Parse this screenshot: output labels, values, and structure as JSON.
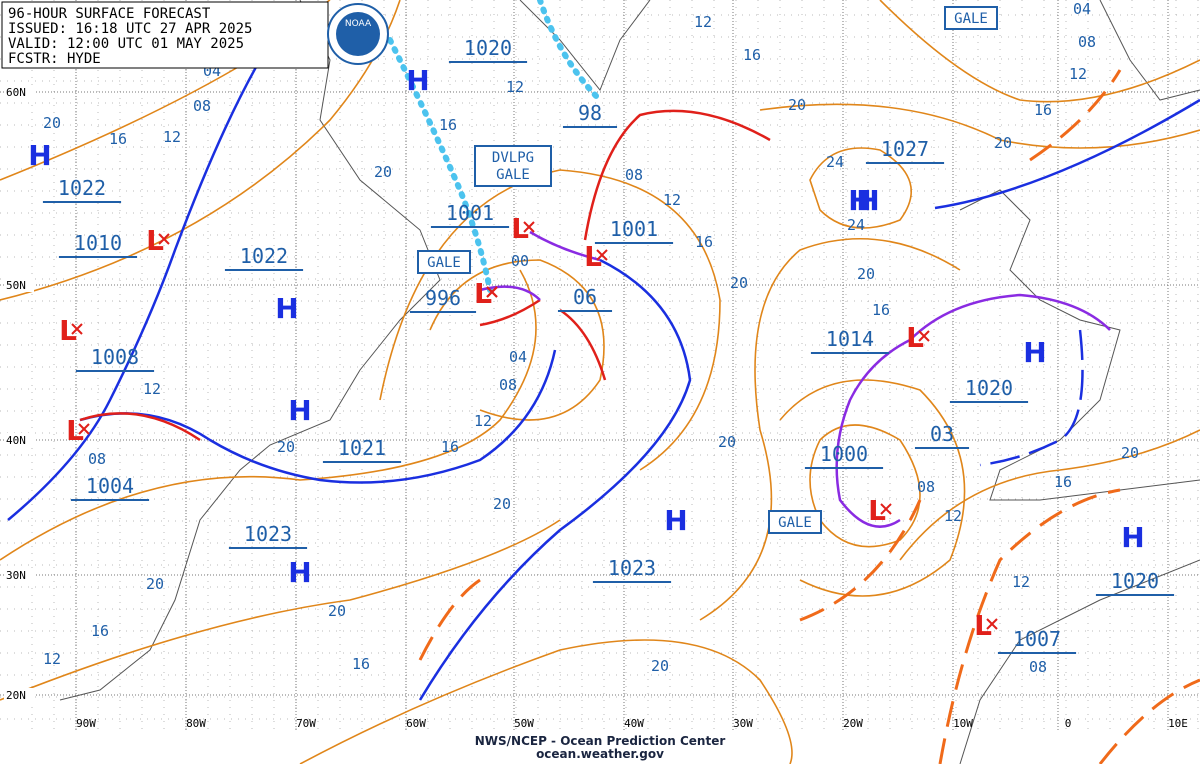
{
  "header": {
    "lines": [
      "96-HOUR SURFACE FORECAST",
      "ISSUED: 16:18 UTC 27 APR 2025",
      "VALID: 12:00 UTC 01 MAY 2025",
      "FCSTR: HYDE"
    ],
    "logo": "NOAA"
  },
  "lat_labels": [
    "60N",
    "50N",
    "40N",
    "30N",
    "20N"
  ],
  "lon_labels": [
    "90W",
    "80W",
    "70W",
    "60W",
    "50W",
    "40W",
    "30W",
    "20W",
    "10W",
    "0",
    "10E"
  ],
  "symbols": [
    "H",
    "H",
    "H",
    "H",
    "H",
    "H",
    "H",
    "H",
    "H",
    "H",
    "L",
    "L",
    "L",
    "L",
    "L",
    "L",
    "L",
    "L",
    "L",
    "L"
  ],
  "pressures": [
    "1020",
    "98",
    "1027",
    "1022",
    "1010",
    "1022",
    "1001",
    "1001",
    "996",
    "06",
    "1008",
    "1014",
    "1020",
    "1021",
    "1004",
    "1000",
    "03",
    "1023",
    "1023",
    "1020",
    "1007"
  ],
  "isobar_labels": [
    "04",
    "08",
    "20",
    "16",
    "12",
    "20",
    "16",
    "12",
    "12",
    "16",
    "20",
    "24",
    "24",
    "20",
    "16",
    "08",
    "12",
    "16",
    "20",
    "04",
    "08",
    "12",
    "16",
    "20",
    "12",
    "08",
    "20",
    "16",
    "12",
    "20",
    "20",
    "08",
    "12",
    "16",
    "20",
    "20",
    "16",
    "12",
    "20",
    "16",
    "20",
    "12",
    "08",
    "00",
    "04",
    "08"
  ],
  "boxes": [
    [
      "GALE"
    ],
    [
      "GALE"
    ],
    [
      "GALE"
    ],
    [
      "DVLPG",
      "GALE"
    ]
  ],
  "footer": [
    "NWS/NCEP - Ocean Prediction Center",
    "ocean.weather.gov"
  ]
}
